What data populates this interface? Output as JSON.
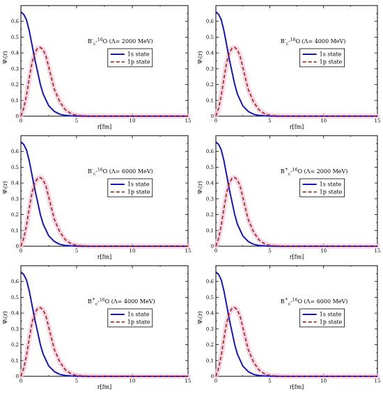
{
  "colors": {
    "s1": "#1515c8",
    "p1": "#a8321e",
    "band": "#f2c8e0",
    "frame": "#000000",
    "background": "#ffffff"
  },
  "chart_data": [
    {
      "type": "line",
      "xlabel": "r[fm]",
      "ylabel": "Ψₗ(r)",
      "xlim": [
        0,
        15
      ],
      "ylim": [
        0,
        0.7
      ],
      "xticks": [
        "0",
        "5",
        "10",
        "15"
      ],
      "yticks": [
        "0",
        "0.1",
        "0.2",
        "0.3",
        "0.4",
        "0.5",
        "0.6"
      ],
      "annotation": {
        "meson": "B",
        "charge": "-",
        "sub": "c",
        "mass": "16",
        "nucleus": "O",
        "lambda": "(Λ= 2000 MeV)"
      },
      "legend_position": "top-right",
      "series": [
        {
          "name": "1s state",
          "x": [
            0,
            0.25,
            0.5,
            0.75,
            1,
            1.25,
            1.5,
            1.75,
            2,
            2.5,
            3,
            3.5,
            4,
            4.5,
            5,
            6,
            8,
            10,
            12,
            15
          ],
          "values": [
            0.66,
            0.645,
            0.61,
            0.54,
            0.45,
            0.36,
            0.28,
            0.2,
            0.14,
            0.065,
            0.03,
            0.012,
            0.005,
            0.002,
            0.001,
            0,
            0,
            0,
            0,
            0
          ]
        },
        {
          "name": "1p state",
          "x": [
            0,
            0.25,
            0.5,
            0.75,
            1,
            1.25,
            1.5,
            1.75,
            2,
            2.25,
            2.5,
            2.75,
            3,
            3.5,
            4,
            4.5,
            5,
            6,
            8,
            10,
            12,
            15
          ],
          "values": [
            0,
            0.05,
            0.13,
            0.24,
            0.34,
            0.4,
            0.43,
            0.435,
            0.42,
            0.38,
            0.31,
            0.24,
            0.17,
            0.09,
            0.04,
            0.016,
            0.005,
            0.001,
            0,
            0,
            0,
            0
          ]
        }
      ]
    },
    {
      "type": "line",
      "xlabel": "r[fm]",
      "ylabel": "Ψₗ(r)",
      "xlim": [
        0,
        15
      ],
      "ylim": [
        0,
        0.7
      ],
      "xticks": [
        "0",
        "5",
        "10",
        "15"
      ],
      "yticks": [
        "0",
        "0.1",
        "0.2",
        "0.3",
        "0.4",
        "0.5",
        "0.6"
      ],
      "annotation": {
        "meson": "B",
        "charge": "-",
        "sub": "c",
        "mass": "16",
        "nucleus": "O",
        "lambda": "(Λ= 4000 MeV)"
      },
      "legend_position": "top-right",
      "series": [
        {
          "name": "1s state",
          "x": [
            0,
            0.25,
            0.5,
            0.75,
            1,
            1.25,
            1.5,
            1.75,
            2,
            2.5,
            3,
            3.5,
            4,
            4.5,
            5,
            6,
            8,
            10,
            12,
            15
          ],
          "values": [
            0.66,
            0.645,
            0.61,
            0.54,
            0.45,
            0.36,
            0.28,
            0.2,
            0.14,
            0.065,
            0.03,
            0.012,
            0.005,
            0.002,
            0.001,
            0,
            0,
            0,
            0,
            0
          ]
        },
        {
          "name": "1p state",
          "x": [
            0,
            0.25,
            0.5,
            0.75,
            1,
            1.25,
            1.5,
            1.75,
            2,
            2.25,
            2.5,
            2.75,
            3,
            3.5,
            4,
            4.5,
            5,
            6,
            8,
            10,
            12,
            15
          ],
          "values": [
            0,
            0.05,
            0.13,
            0.24,
            0.34,
            0.4,
            0.43,
            0.435,
            0.42,
            0.38,
            0.31,
            0.24,
            0.17,
            0.09,
            0.04,
            0.016,
            0.005,
            0.001,
            0,
            0,
            0,
            0
          ]
        }
      ]
    },
    {
      "type": "line",
      "xlabel": "r[fm]",
      "ylabel": "Ψₗ(r)",
      "xlim": [
        0,
        15
      ],
      "ylim": [
        0,
        0.7
      ],
      "xticks": [
        "0",
        "5",
        "10",
        "15"
      ],
      "yticks": [
        "0",
        "0.1",
        "0.2",
        "0.3",
        "0.4",
        "0.5",
        "0.6"
      ],
      "annotation": {
        "meson": "B",
        "charge": "-",
        "sub": "c",
        "mass": "16",
        "nucleus": "O",
        "lambda": "(Λ= 6000 MeV)"
      },
      "legend_position": "top-right",
      "series": [
        {
          "name": "1s state",
          "x": [
            0,
            0.25,
            0.5,
            0.75,
            1,
            1.25,
            1.5,
            1.75,
            2,
            2.5,
            3,
            3.5,
            4,
            4.5,
            5,
            6,
            8,
            10,
            12,
            15
          ],
          "values": [
            0.66,
            0.645,
            0.61,
            0.54,
            0.45,
            0.36,
            0.28,
            0.2,
            0.14,
            0.065,
            0.03,
            0.012,
            0.005,
            0.002,
            0.001,
            0,
            0,
            0,
            0,
            0
          ]
        },
        {
          "name": "1p state",
          "x": [
            0,
            0.25,
            0.5,
            0.75,
            1,
            1.25,
            1.5,
            1.75,
            2,
            2.25,
            2.5,
            2.75,
            3,
            3.5,
            4,
            4.5,
            5,
            6,
            8,
            10,
            12,
            15
          ],
          "values": [
            0,
            0.05,
            0.13,
            0.24,
            0.34,
            0.4,
            0.43,
            0.435,
            0.42,
            0.38,
            0.31,
            0.24,
            0.17,
            0.09,
            0.04,
            0.016,
            0.005,
            0.001,
            0,
            0,
            0,
            0
          ]
        }
      ]
    },
    {
      "type": "line",
      "xlabel": "r[fm]",
      "ylabel": "Ψₗ(r)",
      "xlim": [
        0,
        15
      ],
      "ylim": [
        0,
        0.7
      ],
      "xticks": [
        "0",
        "5",
        "10",
        "15"
      ],
      "yticks": [
        "0",
        "0.1",
        "0.2",
        "0.3",
        "0.4",
        "0.5",
        "0.6"
      ],
      "annotation": {
        "meson": "B",
        "charge": "+",
        "sub": "c",
        "mass": "16",
        "nucleus": "O",
        "lambda": "(Λ= 2000 MeV)"
      },
      "legend_position": "top-right",
      "series": [
        {
          "name": "1s state",
          "x": [
            0,
            0.25,
            0.5,
            0.75,
            1,
            1.25,
            1.5,
            1.75,
            2,
            2.5,
            3,
            3.5,
            4,
            4.5,
            5,
            6,
            8,
            10,
            12,
            15
          ],
          "values": [
            0.66,
            0.645,
            0.61,
            0.54,
            0.45,
            0.36,
            0.28,
            0.2,
            0.14,
            0.065,
            0.03,
            0.012,
            0.005,
            0.002,
            0.001,
            0,
            0,
            0,
            0,
            0
          ]
        },
        {
          "name": "1p state",
          "x": [
            0,
            0.25,
            0.5,
            0.75,
            1,
            1.25,
            1.5,
            1.75,
            2,
            2.25,
            2.5,
            2.75,
            3,
            3.5,
            4,
            4.5,
            5,
            6,
            8,
            10,
            12,
            15
          ],
          "values": [
            0,
            0.05,
            0.13,
            0.24,
            0.34,
            0.4,
            0.43,
            0.435,
            0.42,
            0.38,
            0.31,
            0.24,
            0.17,
            0.09,
            0.04,
            0.016,
            0.005,
            0.001,
            0,
            0,
            0,
            0
          ]
        }
      ]
    },
    {
      "type": "line",
      "xlabel": "r[fm]",
      "ylabel": "Ψₗ(r)",
      "xlim": [
        0,
        15
      ],
      "ylim": [
        0,
        0.7
      ],
      "xticks": [
        "0",
        "5",
        "10",
        "15"
      ],
      "yticks": [
        "0",
        "0.1",
        "0.2",
        "0.3",
        "0.4",
        "0.5",
        "0.6"
      ],
      "annotation": {
        "meson": "B",
        "charge": "+",
        "sub": "c",
        "mass": "16",
        "nucleus": "O",
        "lambda": "(Λ= 4000 MeV)"
      },
      "legend_position": "top-right",
      "series": [
        {
          "name": "1s state",
          "x": [
            0,
            0.25,
            0.5,
            0.75,
            1,
            1.25,
            1.5,
            1.75,
            2,
            2.5,
            3,
            3.5,
            4,
            4.5,
            5,
            6,
            8,
            10,
            12,
            15
          ],
          "values": [
            0.66,
            0.645,
            0.61,
            0.54,
            0.45,
            0.36,
            0.28,
            0.2,
            0.14,
            0.065,
            0.03,
            0.012,
            0.005,
            0.002,
            0.001,
            0,
            0,
            0,
            0,
            0
          ]
        },
        {
          "name": "1p state",
          "x": [
            0,
            0.25,
            0.5,
            0.75,
            1,
            1.25,
            1.5,
            1.75,
            2,
            2.25,
            2.5,
            2.75,
            3,
            3.5,
            4,
            4.5,
            5,
            6,
            8,
            10,
            12,
            15
          ],
          "values": [
            0,
            0.05,
            0.13,
            0.24,
            0.34,
            0.4,
            0.43,
            0.435,
            0.42,
            0.38,
            0.31,
            0.24,
            0.17,
            0.09,
            0.04,
            0.016,
            0.005,
            0.001,
            0,
            0,
            0,
            0
          ]
        }
      ]
    },
    {
      "type": "line",
      "xlabel": "r[fm]",
      "ylabel": "Ψₗ(r)",
      "xlim": [
        0,
        15
      ],
      "ylim": [
        0,
        0.7
      ],
      "xticks": [
        "0",
        "5",
        "10",
        "15"
      ],
      "yticks": [
        "0",
        "0.1",
        "0.2",
        "0.3",
        "0.4",
        "0.5",
        "0.6"
      ],
      "annotation": {
        "meson": "B",
        "charge": "+",
        "sub": "c",
        "mass": "16",
        "nucleus": "O",
        "lambda": "(Λ= 6000 MeV)"
      },
      "legend_position": "top-right",
      "series": [
        {
          "name": "1s state",
          "x": [
            0,
            0.25,
            0.5,
            0.75,
            1,
            1.25,
            1.5,
            1.75,
            2,
            2.5,
            3,
            3.5,
            4,
            4.5,
            5,
            6,
            8,
            10,
            12,
            15
          ],
          "values": [
            0.66,
            0.645,
            0.61,
            0.54,
            0.45,
            0.36,
            0.28,
            0.2,
            0.14,
            0.065,
            0.03,
            0.012,
            0.005,
            0.002,
            0.001,
            0,
            0,
            0,
            0,
            0
          ]
        },
        {
          "name": "1p state",
          "x": [
            0,
            0.25,
            0.5,
            0.75,
            1,
            1.25,
            1.5,
            1.75,
            2,
            2.25,
            2.5,
            2.75,
            3,
            3.5,
            4,
            4.5,
            5,
            6,
            8,
            10,
            12,
            15
          ],
          "values": [
            0,
            0.05,
            0.13,
            0.24,
            0.34,
            0.4,
            0.43,
            0.435,
            0.42,
            0.38,
            0.31,
            0.24,
            0.17,
            0.09,
            0.04,
            0.016,
            0.005,
            0.001,
            0,
            0,
            0,
            0
          ]
        }
      ]
    }
  ]
}
